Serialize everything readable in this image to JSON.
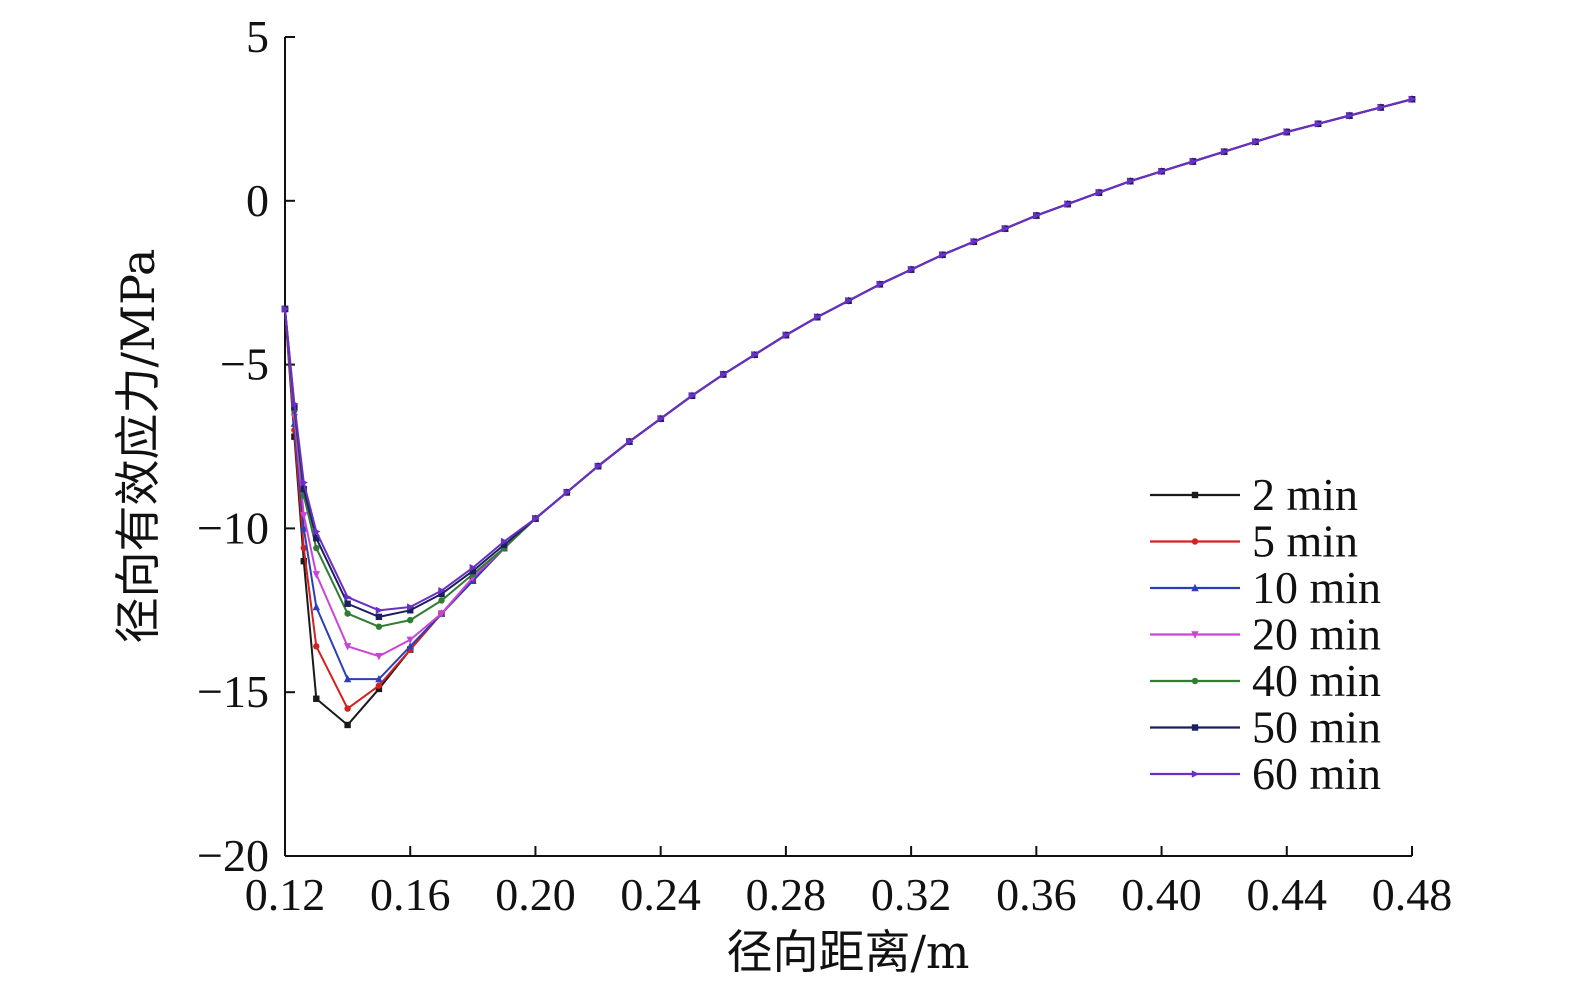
{
  "chart_data": {
    "type": "line",
    "xlabel": "径向距离/m",
    "ylabel": "径向有效应力/MPa",
    "xlim": [
      0.12,
      0.48
    ],
    "ylim": [
      -20,
      5
    ],
    "x_ticks": [
      "0.12",
      "0.16",
      "0.20",
      "0.24",
      "0.28",
      "0.32",
      "0.36",
      "0.40",
      "0.44",
      "0.48"
    ],
    "y_ticks": [
      "5",
      "0",
      "−5",
      "−10",
      "−15",
      "−20"
    ],
    "grid": false,
    "legend_position": "right",
    "x": [
      0.12,
      0.123,
      0.126,
      0.13,
      0.14,
      0.15,
      0.16,
      0.17,
      0.18,
      0.19,
      0.2,
      0.21,
      0.22,
      0.23,
      0.24,
      0.25,
      0.26,
      0.27,
      0.28,
      0.29,
      0.3,
      0.31,
      0.32,
      0.33,
      0.34,
      0.35,
      0.36,
      0.37,
      0.38,
      0.39,
      0.4,
      0.41,
      0.42,
      0.43,
      0.44,
      0.45,
      0.46,
      0.47,
      0.48
    ],
    "series": [
      {
        "name": "2 min",
        "color": "#1a1a1a",
        "marker": "square",
        "values": [
          -3.3,
          -7.2,
          -11.0,
          -15.2,
          -16.0,
          -14.9,
          -13.7,
          -12.6,
          -11.6,
          -10.6,
          -9.7,
          -8.9,
          -8.1,
          -7.35,
          -6.65,
          -5.95,
          -5.3,
          -4.7,
          -4.1,
          -3.55,
          -3.05,
          -2.55,
          -2.1,
          -1.65,
          -1.25,
          -0.85,
          -0.45,
          -0.1,
          0.25,
          0.6,
          0.9,
          1.2,
          1.5,
          1.8,
          2.1,
          2.35,
          2.6,
          2.85,
          3.1
        ]
      },
      {
        "name": "5 min",
        "color": "#d32020",
        "marker": "circle",
        "values": [
          -3.3,
          -7.0,
          -10.6,
          -13.6,
          -15.5,
          -14.8,
          -13.7,
          -12.6,
          -11.6,
          -10.6,
          -9.7,
          -8.9,
          -8.1,
          -7.35,
          -6.65,
          -5.95,
          -5.3,
          -4.7,
          -4.1,
          -3.55,
          -3.05,
          -2.55,
          -2.1,
          -1.65,
          -1.25,
          -0.85,
          -0.45,
          -0.1,
          0.25,
          0.6,
          0.9,
          1.2,
          1.5,
          1.8,
          2.1,
          2.35,
          2.6,
          2.85,
          3.1
        ]
      },
      {
        "name": "10 min",
        "color": "#2a3fb8",
        "marker": "triangle",
        "values": [
          -3.3,
          -6.8,
          -10.0,
          -12.4,
          -14.6,
          -14.6,
          -13.6,
          -12.6,
          -11.6,
          -10.6,
          -9.7,
          -8.9,
          -8.1,
          -7.35,
          -6.65,
          -5.95,
          -5.3,
          -4.7,
          -4.1,
          -3.55,
          -3.05,
          -2.55,
          -2.1,
          -1.65,
          -1.25,
          -0.85,
          -0.45,
          -0.1,
          0.25,
          0.6,
          0.9,
          1.2,
          1.5,
          1.8,
          2.1,
          2.35,
          2.6,
          2.85,
          3.1
        ]
      },
      {
        "name": "20 min",
        "color": "#cc44d6",
        "marker": "triangle-down",
        "values": [
          -3.3,
          -6.6,
          -9.6,
          -11.4,
          -13.6,
          -13.9,
          -13.4,
          -12.6,
          -11.5,
          -10.6,
          -9.7,
          -8.9,
          -8.1,
          -7.35,
          -6.65,
          -5.95,
          -5.3,
          -4.7,
          -4.1,
          -3.55,
          -3.05,
          -2.55,
          -2.1,
          -1.65,
          -1.25,
          -0.85,
          -0.45,
          -0.1,
          0.25,
          0.6,
          0.9,
          1.2,
          1.5,
          1.8,
          2.1,
          2.35,
          2.6,
          2.85,
          3.1
        ]
      },
      {
        "name": "40 min",
        "color": "#2e7d32",
        "marker": "circle",
        "values": [
          -3.3,
          -6.4,
          -9.0,
          -10.6,
          -12.6,
          -13.0,
          -12.8,
          -12.2,
          -11.4,
          -10.6,
          -9.7,
          -8.9,
          -8.1,
          -7.35,
          -6.65,
          -5.95,
          -5.3,
          -4.7,
          -4.1,
          -3.55,
          -3.05,
          -2.55,
          -2.1,
          -1.65,
          -1.25,
          -0.85,
          -0.45,
          -0.1,
          0.25,
          0.6,
          0.9,
          1.2,
          1.5,
          1.8,
          2.1,
          2.35,
          2.6,
          2.85,
          3.1
        ]
      },
      {
        "name": "50 min",
        "color": "#1c1f5e",
        "marker": "square",
        "values": [
          -3.3,
          -6.3,
          -8.8,
          -10.3,
          -12.3,
          -12.7,
          -12.5,
          -12.0,
          -11.3,
          -10.5,
          -9.7,
          -8.9,
          -8.1,
          -7.35,
          -6.65,
          -5.95,
          -5.3,
          -4.7,
          -4.1,
          -3.55,
          -3.05,
          -2.55,
          -2.1,
          -1.65,
          -1.25,
          -0.85,
          -0.45,
          -0.1,
          0.25,
          0.6,
          0.9,
          1.2,
          1.5,
          1.8,
          2.1,
          2.35,
          2.6,
          2.85,
          3.1
        ]
      },
      {
        "name": "60 min",
        "color": "#6a2fc4",
        "marker": "triangle-right",
        "values": [
          -3.3,
          -6.2,
          -8.6,
          -10.1,
          -12.1,
          -12.5,
          -12.4,
          -11.9,
          -11.2,
          -10.4,
          -9.7,
          -8.9,
          -8.1,
          -7.35,
          -6.65,
          -5.95,
          -5.3,
          -4.7,
          -4.1,
          -3.55,
          -3.05,
          -2.55,
          -2.1,
          -1.65,
          -1.25,
          -0.85,
          -0.45,
          -0.1,
          0.25,
          0.6,
          0.9,
          1.2,
          1.5,
          1.8,
          2.1,
          2.35,
          2.6,
          2.85,
          3.1
        ]
      }
    ]
  }
}
